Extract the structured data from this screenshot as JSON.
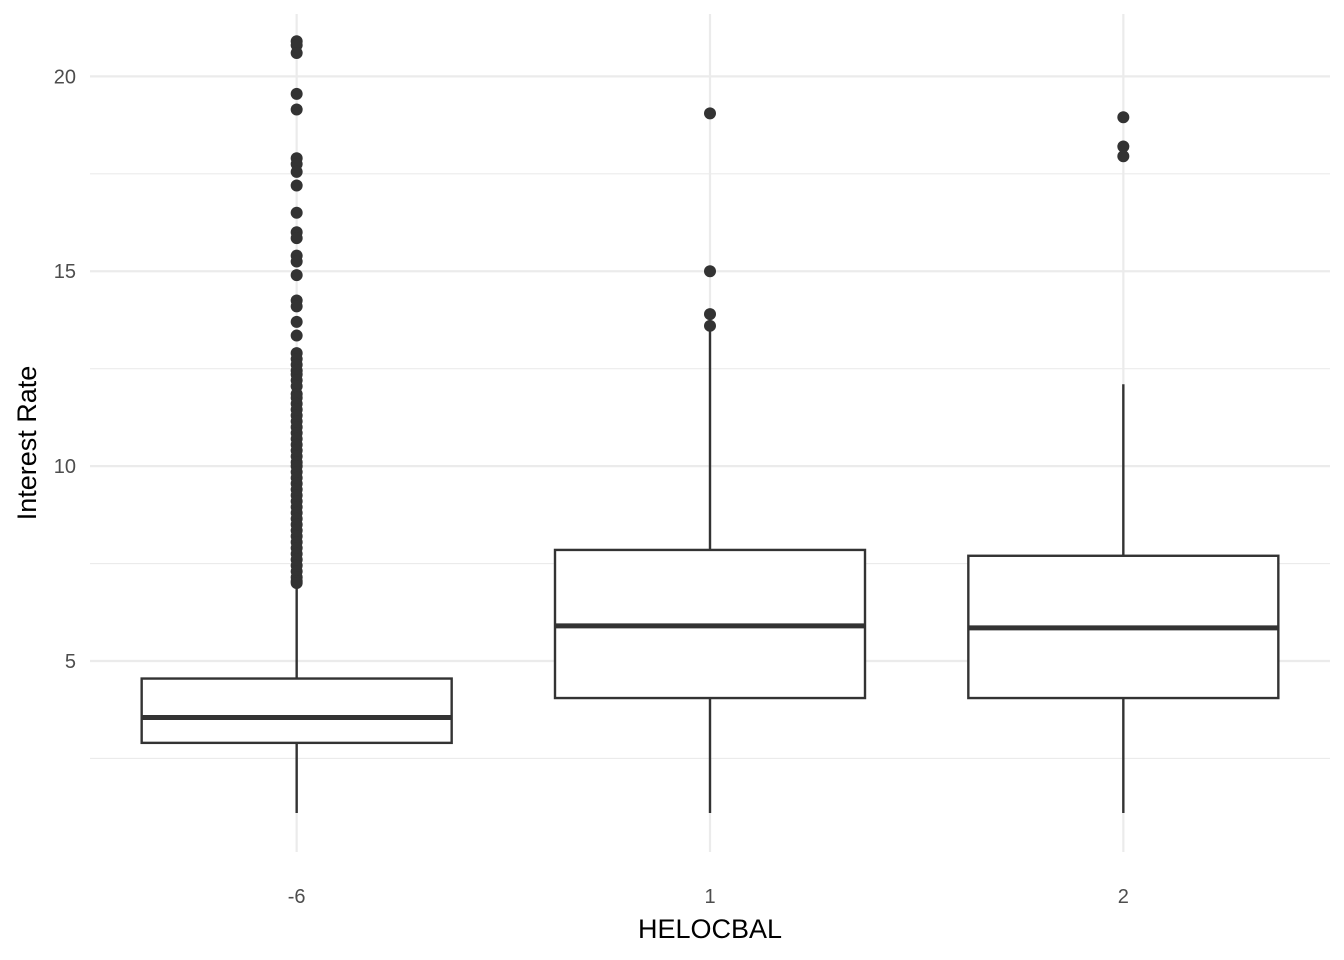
{
  "chart_data": {
    "type": "box",
    "xlabel": "HELOCBAL",
    "ylabel": "Interest Rate",
    "categories": [
      "-6",
      "1",
      "2"
    ],
    "ylim": [
      0.1,
      21.6
    ],
    "y_ticks": [
      5,
      10,
      15,
      20
    ],
    "y_minor_ticks": [
      2.5,
      7.5,
      12.5,
      17.5
    ],
    "grid": true,
    "legend": "none",
    "colors": {
      "box_stroke": "#333333",
      "box_fill": "#ffffff",
      "outlier": "#333333",
      "grid": "#ebebeb"
    },
    "boxes": [
      {
        "category": "-6",
        "whisker_low": 1.1,
        "q1": 2.9,
        "median": 3.55,
        "q3": 4.55,
        "whisker_high": 6.95,
        "outliers": [
          20.9,
          20.8,
          20.6,
          19.55,
          19.15,
          17.9,
          17.75,
          17.55,
          17.2,
          16.5,
          16.0,
          15.85,
          15.4,
          15.25,
          14.9,
          14.25,
          14.1,
          13.7,
          13.35,
          12.9,
          12.75,
          12.6,
          12.45,
          12.35,
          12.2,
          12.05,
          11.85,
          11.75,
          11.6,
          11.45,
          11.3,
          11.15,
          11.0,
          10.85,
          10.7,
          10.55,
          10.4,
          10.25,
          10.1,
          10.0,
          9.85,
          9.7,
          9.55,
          9.4,
          9.25,
          9.1,
          8.95,
          8.8,
          8.65,
          8.5,
          8.35,
          8.2,
          8.05,
          7.9,
          7.75,
          7.6,
          7.45,
          7.3,
          7.15,
          7.05,
          7.0
        ]
      },
      {
        "category": "1",
        "whisker_low": 1.1,
        "q1": 4.05,
        "median": 5.9,
        "q3": 7.85,
        "whisker_high": 13.5,
        "outliers": [
          19.05,
          15.0,
          13.9,
          13.6
        ]
      },
      {
        "category": "2",
        "whisker_low": 1.1,
        "q1": 4.05,
        "median": 5.85,
        "q3": 7.7,
        "whisker_high": 12.1,
        "outliers": [
          18.95,
          18.2,
          17.95
        ]
      }
    ]
  }
}
